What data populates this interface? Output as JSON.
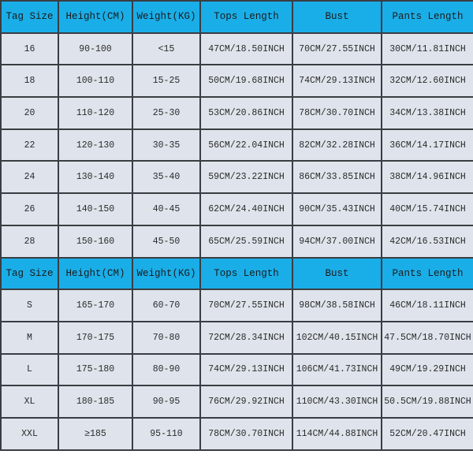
{
  "colors": {
    "header_bg": "#1aaee8",
    "cell_bg": "#dfe4ec",
    "border": "#3a3d42"
  },
  "headers": [
    "Tag Size",
    "Height(CM)",
    "Weight(KG)",
    "Tops Length",
    "Bust",
    "Pants Length"
  ],
  "kids_rows": [
    [
      "16",
      "90-100",
      "<15",
      "47CM/18.50INCH",
      "70CM/27.55INCH",
      "30CM/11.81INCH"
    ],
    [
      "18",
      "100-110",
      "15-25",
      "50CM/19.68INCH",
      "74CM/29.13INCH",
      "32CM/12.60INCH"
    ],
    [
      "20",
      "110-120",
      "25-30",
      "53CM/20.86INCH",
      "78CM/30.70INCH",
      "34CM/13.38INCH"
    ],
    [
      "22",
      "120-130",
      "30-35",
      "56CM/22.04INCH",
      "82CM/32.28INCH",
      "36CM/14.17INCH"
    ],
    [
      "24",
      "130-140",
      "35-40",
      "59CM/23.22INCH",
      "86CM/33.85INCH",
      "38CM/14.96INCH"
    ],
    [
      "26",
      "140-150",
      "40-45",
      "62CM/24.40INCH",
      "90CM/35.43INCH",
      "40CM/15.74INCH"
    ],
    [
      "28",
      "150-160",
      "45-50",
      "65CM/25.59INCH",
      "94CM/37.00INCH",
      "42CM/16.53INCH"
    ]
  ],
  "adult_rows": [
    [
      "S",
      "165-170",
      "60-70",
      "70CM/27.55INCH",
      "98CM/38.58INCH",
      "46CM/18.11INCH"
    ],
    [
      "M",
      "170-175",
      "70-80",
      "72CM/28.34INCH",
      "102CM/40.15INCH",
      "47.5CM/18.70INCH"
    ],
    [
      "L",
      "175-180",
      "80-90",
      "74CM/29.13INCH",
      "106CM/41.73INCH",
      "49CM/19.29INCH"
    ],
    [
      "XL",
      "180-185",
      "90-95",
      "76CM/29.92INCH",
      "110CM/43.30INCH",
      "50.5CM/19.88INCH"
    ],
    [
      "XXL",
      "≥185",
      "95-110",
      "78CM/30.70INCH",
      "114CM/44.88INCH",
      "52CM/20.47INCH"
    ]
  ]
}
